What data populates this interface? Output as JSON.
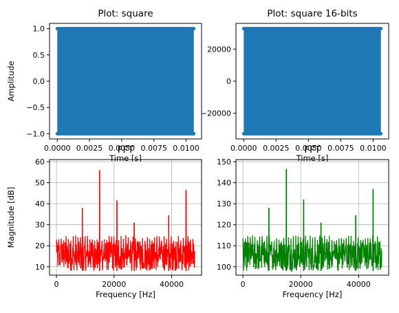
{
  "chart_data": [
    {
      "type": "scatter",
      "title": "Plot: square",
      "xlabel": "Time [s]",
      "ylabel": "Amplitude",
      "xlim": [
        -0.0006,
        0.0112
      ],
      "ylim": [
        -1.1,
        1.1
      ],
      "xticks": [
        0.0,
        0.0025,
        0.005,
        0.0075,
        0.01
      ],
      "xtick_labels": [
        "0.0000",
        "0.0025",
        "0.0050",
        "0.0075",
        "0.0100"
      ],
      "yticks": [
        -1.0,
        -0.5,
        0.0,
        0.5,
        1.0
      ],
      "ytick_labels": [
        "−1.0",
        "−0.5",
        "0.0",
        "0.5",
        "1.0"
      ],
      "grid": false,
      "color": "#1f77b4",
      "series": [
        {
          "x_range": [
            0.0,
            0.0106
          ],
          "levels": [
            -1.0,
            1.0
          ],
          "style": "markers-dense"
        }
      ]
    },
    {
      "type": "scatter",
      "title": "Plot: square 16-bits",
      "xlabel": "Time [s]",
      "ylabel": "",
      "xlim": [
        -0.0006,
        0.0112
      ],
      "ylim": [
        -36044,
        36044
      ],
      "xticks": [
        0.0,
        0.0025,
        0.005,
        0.0075,
        0.01
      ],
      "xtick_labels": [
        "0.0000",
        "0.0025",
        "0.0050",
        "0.0075",
        "0.0100"
      ],
      "yticks": [
        -20000,
        0,
        20000
      ],
      "ytick_labels": [
        "−20000",
        "0",
        "20000"
      ],
      "grid": false,
      "color": "#1f77b4",
      "series": [
        {
          "x_range": [
            0.0,
            0.0106
          ],
          "levels": [
            -32767,
            32767
          ],
          "style": "markers-dense"
        }
      ]
    },
    {
      "type": "line",
      "title": "FFT",
      "xlabel": "Frequency [Hz]",
      "ylabel": "Magnitude [dB]",
      "xlim": [
        -2400,
        50400
      ],
      "ylim": [
        6,
        61
      ],
      "xticks": [
        0,
        20000,
        40000
      ],
      "xtick_labels": [
        "0",
        "20000",
        "40000"
      ],
      "yticks": [
        10,
        20,
        30,
        40,
        50,
        60
      ],
      "ytick_labels": [
        "10",
        "20",
        "30",
        "40",
        "50",
        "60"
      ],
      "grid": true,
      "color": "#ff0000",
      "noise_band": [
        8,
        22
      ],
      "peaks": [
        {
          "x": 9000,
          "y": 38
        },
        {
          "x": 15000,
          "y": 56
        },
        {
          "x": 21000,
          "y": 41.5
        },
        {
          "x": 27000,
          "y": 31
        },
        {
          "x": 39000,
          "y": 34.5
        },
        {
          "x": 45000,
          "y": 46.5
        }
      ],
      "x_max": 48000
    },
    {
      "type": "line",
      "title": "FFT",
      "xlabel": "Frequency [Hz]",
      "ylabel": "",
      "xlim": [
        -2400,
        50400
      ],
      "ylim": [
        96,
        151
      ],
      "xticks": [
        0,
        20000,
        40000
      ],
      "xtick_labels": [
        "0",
        "20000",
        "40000"
      ],
      "yticks": [
        100,
        110,
        120,
        130,
        140,
        150
      ],
      "ytick_labels": [
        "100",
        "110",
        "120",
        "130",
        "140",
        "150"
      ],
      "grid": true,
      "color": "#008000",
      "noise_band": [
        98,
        112
      ],
      "peaks": [
        {
          "x": 9000,
          "y": 128
        },
        {
          "x": 15000,
          "y": 146.5
        },
        {
          "x": 21000,
          "y": 132
        },
        {
          "x": 27000,
          "y": 121
        },
        {
          "x": 39000,
          "y": 124.5
        },
        {
          "x": 45000,
          "y": 137
        }
      ],
      "x_max": 48000
    }
  ]
}
